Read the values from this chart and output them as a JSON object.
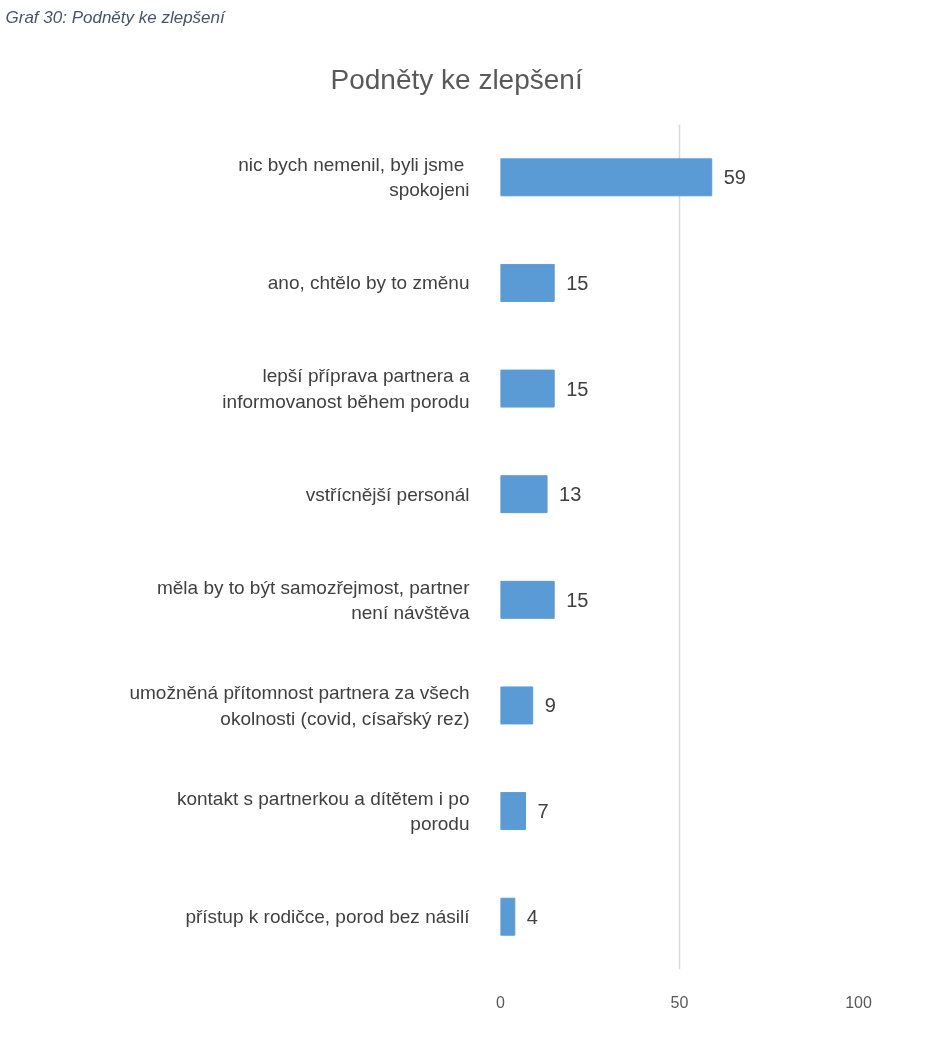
{
  "chart_data": {
    "type": "bar",
    "orientation": "horizontal",
    "title": "Podněty ke zlepšení",
    "annotations": [
      "Graf 30: Podněty ke zlepšení"
    ],
    "categories": [
      "nic bych nemenil,  byli jsme spokojeni",
      "ano, chtělo by to změnu",
      "lepší příprava partnera a informovanost během porodu",
      "vstřícnější personál",
      "měla by to být samozřejmost, partner není návštěva",
      "umožněná přítomnost partnera za všech okolnosti (covid, císařský rez)",
      "kontakt s partnerkou a dítětem i po porodu",
      "přístup k rodičce, porod bez násilí"
    ],
    "values": [
      59,
      15,
      15,
      13,
      15,
      9,
      7,
      4
    ],
    "color": "#5b9bd5",
    "xlim": [
      0,
      100
    ],
    "xticks": [
      0,
      50,
      100
    ],
    "grid": "x",
    "data_labels": true
  }
}
